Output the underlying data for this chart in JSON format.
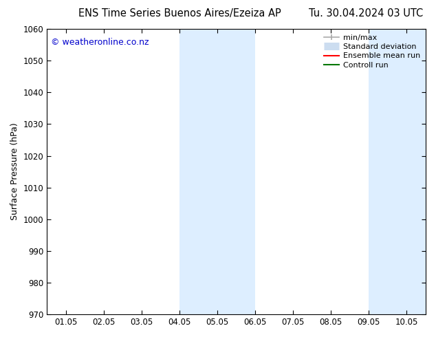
{
  "title_left": "ENS Time Series Buenos Aires/Ezeiza AP",
  "title_right": "Tu. 30.04.2024 03 UTC",
  "ylabel": "Surface Pressure (hPa)",
  "ylim": [
    970,
    1060
  ],
  "yticks": [
    970,
    980,
    990,
    1000,
    1010,
    1020,
    1030,
    1040,
    1050,
    1060
  ],
  "xtick_labels": [
    "01.05",
    "02.05",
    "03.05",
    "04.05",
    "05.05",
    "06.05",
    "07.05",
    "08.05",
    "09.05",
    "10.05"
  ],
  "xtick_positions": [
    0,
    1,
    2,
    3,
    4,
    5,
    6,
    7,
    8,
    9
  ],
  "xmin": -0.5,
  "xmax": 9.5,
  "shaded_regions": [
    {
      "xmin": 3.0,
      "xmax": 5.0
    },
    {
      "xmin": 8.0,
      "xmax": 9.5
    }
  ],
  "shade_color": "#ddeeff",
  "watermark_text": "© weatheronline.co.nz",
  "watermark_color": "#0000cc",
  "legend_items": [
    {
      "label": "min/max",
      "color": "#aaaaaa",
      "lw": 1.2,
      "ls": "-",
      "type": "line_with_ticks"
    },
    {
      "label": "Standard deviation",
      "color": "#ccddf0",
      "lw": 8,
      "ls": "-",
      "type": "thick_line"
    },
    {
      "label": "Ensemble mean run",
      "color": "#ff0000",
      "lw": 1.5,
      "ls": "-",
      "type": "line"
    },
    {
      "label": "Controll run",
      "color": "#007700",
      "lw": 1.5,
      "ls": "-",
      "type": "line"
    }
  ],
  "bg_color": "#ffffff",
  "tick_fontsize": 8.5,
  "ylabel_fontsize": 9,
  "title_fontsize": 10.5,
  "watermark_fontsize": 9
}
